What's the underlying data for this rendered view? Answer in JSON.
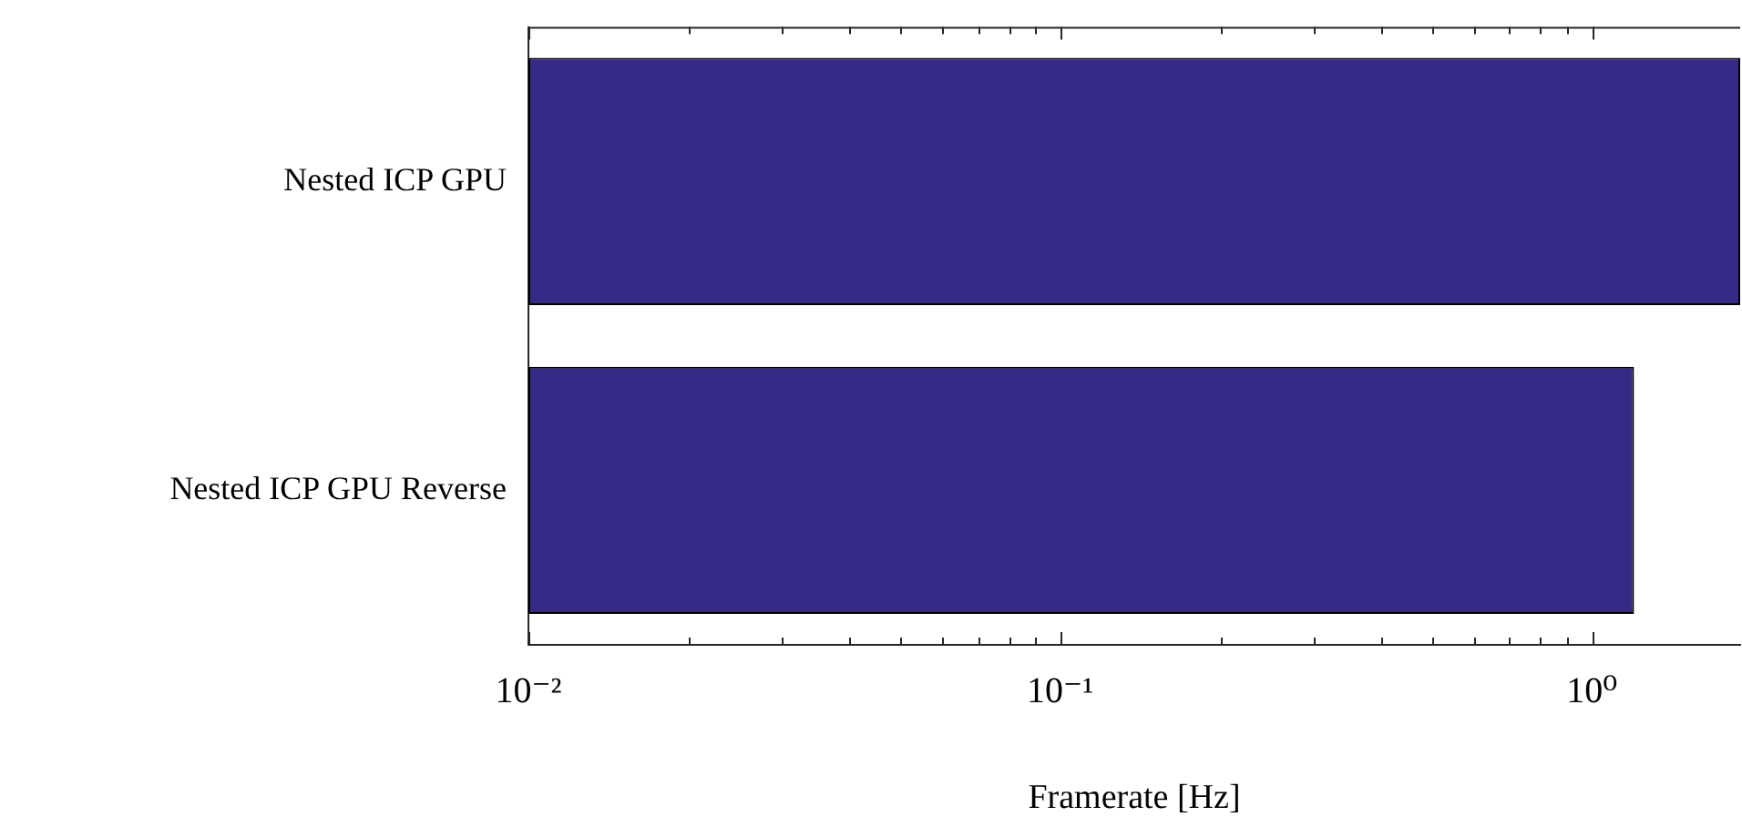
{
  "chart_data": {
    "type": "bar",
    "orientation": "horizontal",
    "log": "x",
    "categories": [
      "Nested ICP GPU",
      "Nested ICP GPU Reverse"
    ],
    "values": [
      1.9,
      1.2
    ],
    "color": "#352a86",
    "xlabel": "Framerate [Hz]",
    "xlim": [
      0.01,
      1.9
    ],
    "xticks": [
      {
        "value": 0.01,
        "label": "10⁻²"
      },
      {
        "value": 0.02,
        "label": null
      },
      {
        "value": 0.03,
        "label": null
      },
      {
        "value": 0.04,
        "label": null
      },
      {
        "value": 0.05,
        "label": null
      },
      {
        "value": 0.06,
        "label": null
      },
      {
        "value": 0.07,
        "label": null
      },
      {
        "value": 0.08,
        "label": null
      },
      {
        "value": 0.09,
        "label": null
      },
      {
        "value": 0.1,
        "label": "10⁻¹"
      },
      {
        "value": 0.2,
        "label": null
      },
      {
        "value": 0.3,
        "label": null
      },
      {
        "value": 0.4,
        "label": null
      },
      {
        "value": 0.5,
        "label": null
      },
      {
        "value": 0.6,
        "label": null
      },
      {
        "value": 0.7,
        "label": null
      },
      {
        "value": 0.8,
        "label": null
      },
      {
        "value": 0.9,
        "label": null
      },
      {
        "value": 1,
        "label": "10⁰"
      }
    ],
    "grid": false,
    "legend": false
  }
}
